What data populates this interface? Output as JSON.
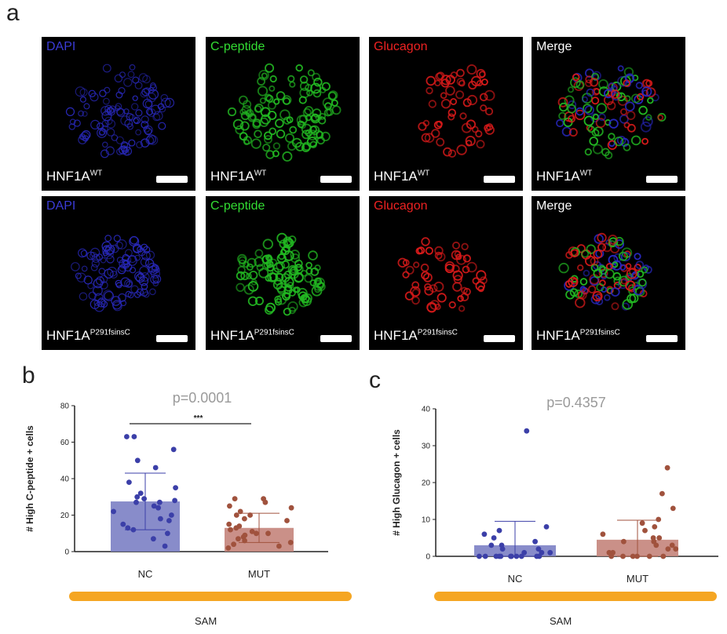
{
  "panel_a": {
    "letter": "a",
    "row_wt": {
      "genotype": "HNF1A",
      "genotype_sup": "WT",
      "tiles": [
        {
          "label": "DAPI",
          "color": "#3b3bd6"
        },
        {
          "label": "C-peptide",
          "color": "#33dd33"
        },
        {
          "label": "Glucagon",
          "color": "#ee2222"
        },
        {
          "label": "Merge",
          "color": "#ffffff"
        }
      ]
    },
    "row_mut": {
      "genotype": "HNF1A",
      "genotype_sup": "P291fsinsC",
      "tiles": [
        {
          "label": "DAPI",
          "color": "#3b3bd6"
        },
        {
          "label": "C-peptide",
          "color": "#33dd33"
        },
        {
          "label": "Glucagon",
          "color": "#ee2222"
        },
        {
          "label": "Merge",
          "color": "#ffffff"
        }
      ]
    }
  },
  "chart_data": [
    {
      "panel": "b",
      "type": "bar",
      "ylabel": "# High C-peptide + cells",
      "ylim": [
        0,
        80
      ],
      "yticks": [
        "0",
        "20",
        "40",
        "60",
        "80"
      ],
      "categories": [
        "NC",
        "MUT"
      ],
      "means": [
        27.5,
        13
      ],
      "sd_upper": [
        43,
        21
      ],
      "sd_lower": [
        12,
        5
      ],
      "bar_colors": [
        "#7b7fc4",
        "#c4847b"
      ],
      "dot_colors": [
        "#3b3fa8",
        "#a0523d"
      ],
      "points": [
        [
          63,
          63,
          56,
          50,
          46,
          38,
          35,
          32,
          30,
          29,
          28,
          27,
          27,
          25,
          24,
          22,
          20,
          18,
          17,
          15,
          13,
          12,
          10,
          7,
          3
        ],
        [
          29,
          29,
          27,
          25,
          24,
          22,
          20,
          20,
          18,
          17,
          15,
          14,
          13,
          12,
          11,
          10,
          10,
          9,
          8,
          7,
          6,
          5,
          4,
          3,
          2
        ]
      ],
      "p_value": "p=0.0001",
      "significance": "***",
      "group_label": "SAM"
    },
    {
      "panel": "c",
      "type": "bar",
      "ylabel": "# High Glucagon + cells",
      "ylim": [
        0,
        40
      ],
      "yticks": [
        "0",
        "10",
        "20",
        "30",
        "40"
      ],
      "categories": [
        "NC",
        "MUT"
      ],
      "means": [
        3,
        4.5
      ],
      "sd_upper": [
        9.5,
        9.8
      ],
      "sd_lower": [
        0,
        0
      ],
      "bar_colors": [
        "#7b7fc4",
        "#c4847b"
      ],
      "dot_colors": [
        "#3b3fa8",
        "#a0523d"
      ],
      "points": [
        [
          34,
          8,
          7,
          6,
          5,
          4,
          3,
          3,
          2,
          2,
          1,
          1,
          1,
          0,
          0,
          0,
          0,
          0,
          0,
          0,
          0,
          0,
          0,
          0
        ],
        [
          24,
          17,
          13,
          10,
          9,
          8,
          7,
          6,
          5,
          5,
          4,
          4,
          3,
          3,
          2,
          2,
          1,
          1,
          0,
          0,
          0,
          0,
          0,
          0
        ]
      ],
      "p_value": "p=0.4357",
      "group_label": "SAM"
    }
  ]
}
